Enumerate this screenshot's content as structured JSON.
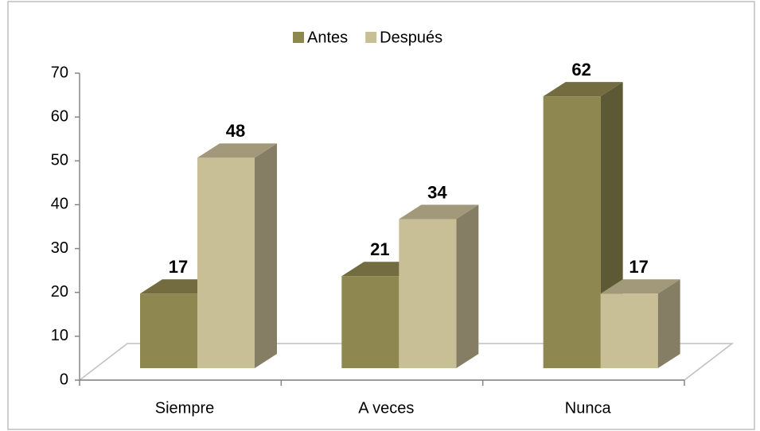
{
  "chart_data": {
    "type": "bar3d",
    "categories": [
      "Siempre",
      "A veces",
      "Nunca"
    ],
    "series": [
      {
        "name": "Antes",
        "color": "#8f8750",
        "values": [
          17,
          21,
          62
        ]
      },
      {
        "name": "Después",
        "color": "#c9bf97",
        "values": [
          48,
          34,
          17
        ]
      }
    ],
    "ylim": [
      0,
      70
    ],
    "yticks": [
      0,
      10,
      20,
      30,
      40,
      50,
      60,
      70
    ],
    "legend": "top"
  }
}
